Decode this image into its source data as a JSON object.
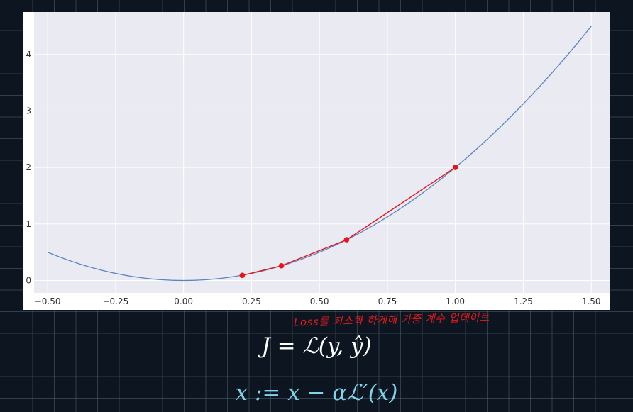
{
  "chart_data": {
    "type": "line",
    "title": "",
    "xlabel": "",
    "ylabel": "",
    "xlim": [
      -0.55,
      1.57
    ],
    "ylim": [
      -0.22,
      4.75
    ],
    "xticks": [
      -0.5,
      -0.25,
      0.0,
      0.25,
      0.5,
      0.75,
      1.0,
      1.25,
      1.5
    ],
    "xtick_labels": [
      "−0.50",
      "−0.25",
      "0.00",
      "0.25",
      "0.50",
      "0.75",
      "1.00",
      "1.25",
      "1.50"
    ],
    "yticks": [
      0,
      1,
      2,
      3,
      4
    ],
    "ytick_labels": [
      "0",
      "1",
      "2",
      "3",
      "4"
    ],
    "grid": true,
    "legend": "none",
    "series": [
      {
        "kind": "curve",
        "function": "2x^2",
        "x_range": [
          -0.5,
          1.5
        ],
        "color": "#5b84c1"
      },
      {
        "kind": "polyline-with-markers",
        "x": [
          1.0,
          0.6,
          0.36,
          0.216
        ],
        "y": [
          2.0,
          0.72,
          0.26,
          0.09
        ],
        "color": "#e8141b"
      }
    ]
  },
  "colors": {
    "plot_background": "#eaeaf2",
    "grid": "#ffffff",
    "curve": "#5b84c1",
    "steps": "#e8141b"
  },
  "annotation": "Loss를 최소화 하게해 가중 계수 업데이트",
  "formula_1": "J = ℒ(y, ŷ)",
  "formula_2": "x := x − αℒ′(x)"
}
